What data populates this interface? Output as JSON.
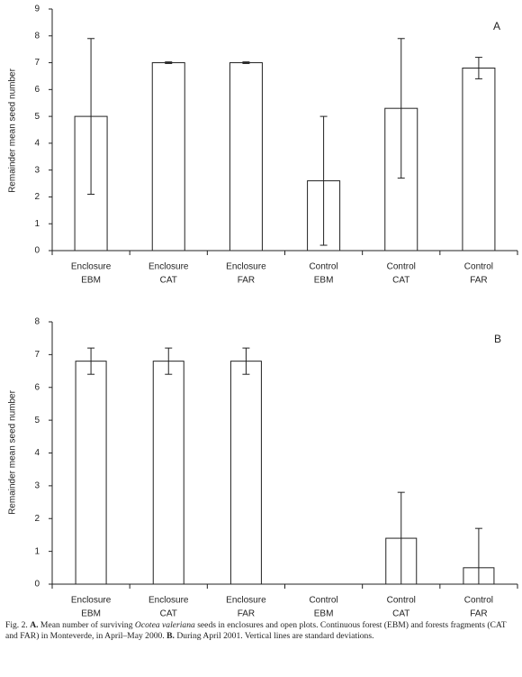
{
  "chart_data": [
    {
      "type": "bar",
      "panel_label": "A",
      "ylabel": "Remainder mean seed number",
      "categories": [
        [
          "Enclosure",
          "EBM"
        ],
        [
          "Enclosure",
          "CAT"
        ],
        [
          "Enclosure",
          "FAR"
        ],
        [
          "Control",
          "EBM"
        ],
        [
          "Control",
          "CAT"
        ],
        [
          "Control",
          "FAR"
        ]
      ],
      "values": [
        5.0,
        7.0,
        7.0,
        2.6,
        5.3,
        6.8
      ],
      "errors": [
        2.9,
        0.03,
        0.03,
        2.4,
        2.6,
        0.4
      ],
      "color": "#ffffff",
      "ylim": [
        0,
        9
      ],
      "yticks": [
        0,
        1,
        2,
        3,
        4,
        5,
        6,
        7,
        8,
        9
      ]
    },
    {
      "type": "bar",
      "panel_label": "B",
      "ylabel": "Remainder mean seed number",
      "categories": [
        [
          "Enclosure",
          "EBM"
        ],
        [
          "Enclosure",
          "CAT"
        ],
        [
          "Enclosure",
          "FAR"
        ],
        [
          "Control",
          "EBM"
        ],
        [
          "Control",
          "CAT"
        ],
        [
          "Control",
          "FAR"
        ]
      ],
      "values": [
        6.8,
        6.8,
        6.8,
        0,
        1.4,
        0.5
      ],
      "errors": [
        0.4,
        0.4,
        0.4,
        0,
        1.4,
        1.2
      ],
      "color": "#ffffff",
      "ylim": [
        0,
        8
      ],
      "yticks": [
        0,
        1,
        2,
        3,
        4,
        5,
        6,
        7,
        8
      ]
    }
  ],
  "caption": [
    {
      "text": "Fig. 2. ",
      "style": "normal"
    },
    {
      "text": "A.",
      "style": "bold"
    },
    {
      "text": " Mean number of surviving ",
      "style": "normal"
    },
    {
      "text": "Ocotea valeriana",
      "style": "italic"
    },
    {
      "text": " seeds in enclosures and open plots. Continuous forest (EBM) and forests fragments (CAT and FAR) in Monteverde, in April–May 2000. ",
      "style": "normal"
    },
    {
      "text": "B.",
      "style": "bold"
    },
    {
      "text": " During April 2001. Vertical lines are standard deviations.",
      "style": "normal"
    }
  ]
}
